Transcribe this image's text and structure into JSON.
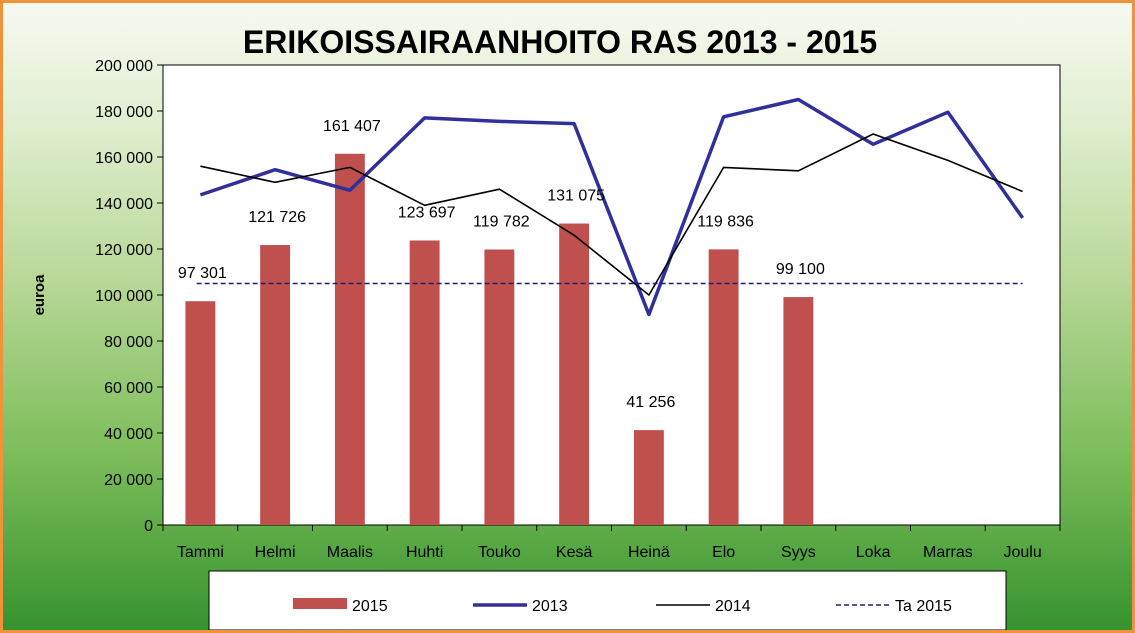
{
  "chart_data": {
    "type": "bar",
    "title": "ERIKOISSAIRAANHOITO RAS  2013 - 2015",
    "ylabel": "euroa",
    "xlabel": "",
    "ylim": [
      0,
      200000
    ],
    "yticks": [
      0,
      20000,
      40000,
      60000,
      80000,
      100000,
      120000,
      140000,
      160000,
      180000,
      200000
    ],
    "ytick_labels": [
      "0",
      "20 000",
      "40 000",
      "60 000",
      "80 000",
      "100 000",
      "120 000",
      "140 000",
      "160 000",
      "180 000",
      "200 000"
    ],
    "categories": [
      "Tammi",
      "Helmi",
      "Maalis",
      "Huhti",
      "Touko",
      "Kesä",
      "Heinä",
      "Elo",
      "Syys",
      "Loka",
      "Marras",
      "Joulu"
    ],
    "legend_position": "bottom",
    "grid": false,
    "series": [
      {
        "name": "2015",
        "type": "bar",
        "color": "#c0504d",
        "values": [
          97301,
          121726,
          161407,
          123697,
          119782,
          131075,
          41256,
          119836,
          99100,
          null,
          null,
          null
        ],
        "labels": [
          "97 301",
          "121 726",
          "161 407",
          "123 697",
          "119 782",
          "131 075",
          "41 256",
          "119 836",
          "99 100",
          "",
          "",
          ""
        ]
      },
      {
        "name": "2013",
        "type": "line",
        "color": "#30309a",
        "values": [
          143500,
          154500,
          145500,
          177000,
          175500,
          174500,
          91500,
          177500,
          185000,
          165500,
          179500,
          133500
        ]
      },
      {
        "name": "2014",
        "type": "line",
        "color": "#000000",
        "values": [
          156000,
          149000,
          155500,
          139000,
          146000,
          126000,
          100000,
          155500,
          154000,
          170000,
          158500,
          145000
        ]
      },
      {
        "name": "Ta 2015",
        "type": "dashed-line",
        "color": "#1f1f7a",
        "values": [
          105000,
          105000,
          105000,
          105000,
          105000,
          105000,
          105000,
          105000,
          105000,
          105000,
          105000,
          105000
        ]
      }
    ]
  }
}
